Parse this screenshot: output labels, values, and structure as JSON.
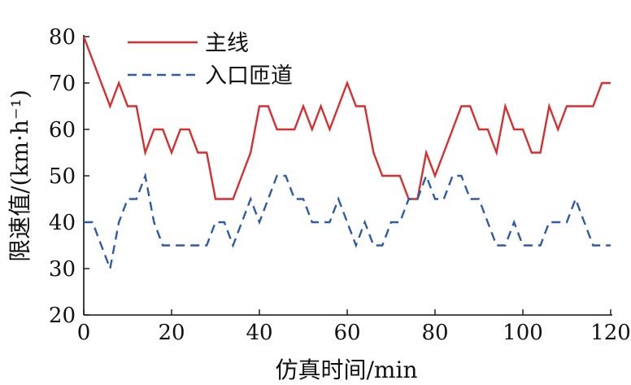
{
  "chart_data": {
    "type": "line",
    "title": "",
    "xlabel": "仿真时间/min",
    "ylabel": "限速值/(km·h⁻¹)",
    "xlim": [
      0,
      120
    ],
    "ylim": [
      20,
      80
    ],
    "xticks": [
      "0",
      "20",
      "40",
      "60",
      "80",
      "100",
      "120"
    ],
    "yticks": [
      "20",
      "30",
      "40",
      "50",
      "60",
      "70",
      "80"
    ],
    "grid": false,
    "legend": "top-left",
    "series": [
      {
        "name": "主线",
        "color": "#d62f2f",
        "dash": "solid",
        "points": [
          [
            0,
            80
          ],
          [
            2,
            75
          ],
          [
            4,
            70
          ],
          [
            6,
            65
          ],
          [
            8,
            70
          ],
          [
            10,
            65
          ],
          [
            12,
            65
          ],
          [
            14,
            55
          ],
          [
            16,
            60
          ],
          [
            18,
            60
          ],
          [
            20,
            55
          ],
          [
            22,
            60
          ],
          [
            24,
            60
          ],
          [
            26,
            55
          ],
          [
            28,
            55
          ],
          [
            30,
            45
          ],
          [
            32,
            45
          ],
          [
            34,
            45
          ],
          [
            36,
            50
          ],
          [
            38,
            55
          ],
          [
            40,
            65
          ],
          [
            42,
            65
          ],
          [
            44,
            60
          ],
          [
            46,
            60
          ],
          [
            48,
            60
          ],
          [
            50,
            65
          ],
          [
            52,
            60
          ],
          [
            54,
            65
          ],
          [
            56,
            60
          ],
          [
            58,
            65
          ],
          [
            60,
            70
          ],
          [
            62,
            65
          ],
          [
            64,
            65
          ],
          [
            66,
            55
          ],
          [
            68,
            50
          ],
          [
            70,
            50
          ],
          [
            72,
            50
          ],
          [
            74,
            45
          ],
          [
            76,
            45
          ],
          [
            78,
            55
          ],
          [
            80,
            50
          ],
          [
            82,
            55
          ],
          [
            84,
            60
          ],
          [
            86,
            65
          ],
          [
            88,
            65
          ],
          [
            90,
            60
          ],
          [
            92,
            60
          ],
          [
            94,
            55
          ],
          [
            96,
            65
          ],
          [
            98,
            60
          ],
          [
            100,
            60
          ],
          [
            102,
            55
          ],
          [
            104,
            55
          ],
          [
            106,
            65
          ],
          [
            108,
            60
          ],
          [
            110,
            65
          ],
          [
            112,
            65
          ],
          [
            114,
            65
          ],
          [
            116,
            65
          ],
          [
            118,
            70
          ],
          [
            120,
            70
          ]
        ]
      },
      {
        "name": "入口匝道",
        "color": "#2e5aa8",
        "dash": "dashed",
        "points": [
          [
            0,
            40
          ],
          [
            2,
            40
          ],
          [
            4,
            35
          ],
          [
            6,
            30
          ],
          [
            8,
            40
          ],
          [
            10,
            45
          ],
          [
            12,
            45
          ],
          [
            14,
            50
          ],
          [
            16,
            40
          ],
          [
            18,
            35
          ],
          [
            20,
            35
          ],
          [
            22,
            35
          ],
          [
            24,
            35
          ],
          [
            26,
            35
          ],
          [
            28,
            35
          ],
          [
            30,
            40
          ],
          [
            32,
            40
          ],
          [
            34,
            35
          ],
          [
            36,
            40
          ],
          [
            38,
            45
          ],
          [
            40,
            40
          ],
          [
            42,
            45
          ],
          [
            44,
            50
          ],
          [
            46,
            50
          ],
          [
            48,
            45
          ],
          [
            50,
            45
          ],
          [
            52,
            40
          ],
          [
            54,
            40
          ],
          [
            56,
            40
          ],
          [
            58,
            45
          ],
          [
            60,
            40
          ],
          [
            62,
            35
          ],
          [
            64,
            40
          ],
          [
            66,
            35
          ],
          [
            68,
            35
          ],
          [
            70,
            40
          ],
          [
            72,
            40
          ],
          [
            74,
            45
          ],
          [
            76,
            45
          ],
          [
            78,
            50
          ],
          [
            80,
            45
          ],
          [
            82,
            45
          ],
          [
            84,
            50
          ],
          [
            86,
            50
          ],
          [
            88,
            45
          ],
          [
            90,
            45
          ],
          [
            92,
            40
          ],
          [
            94,
            35
          ],
          [
            96,
            35
          ],
          [
            98,
            40
          ],
          [
            100,
            35
          ],
          [
            102,
            35
          ],
          [
            104,
            35
          ],
          [
            106,
            40
          ],
          [
            108,
            40
          ],
          [
            110,
            40
          ],
          [
            112,
            45
          ],
          [
            114,
            40
          ],
          [
            116,
            35
          ],
          [
            118,
            35
          ],
          [
            120,
            35
          ]
        ]
      }
    ]
  }
}
